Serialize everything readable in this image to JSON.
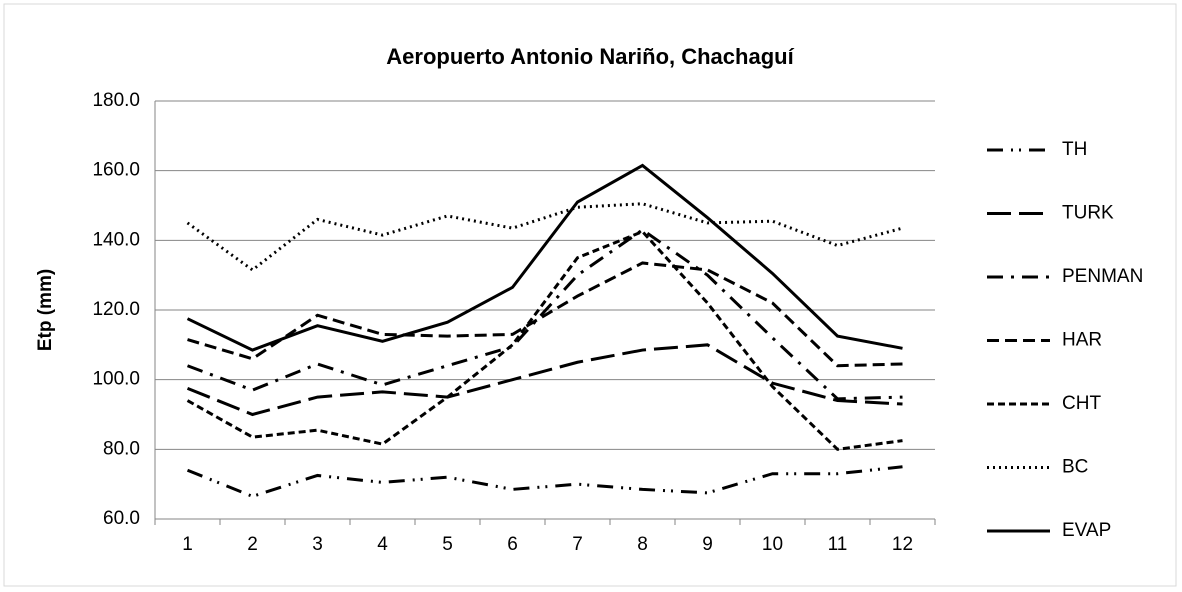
{
  "chart_data": {
    "type": "line",
    "title": "Aeropuerto Antonio Nariño, Chachaguí",
    "y_label": "Etp (mm)",
    "categories": [
      "1",
      "2",
      "3",
      "4",
      "5",
      "6",
      "7",
      "8",
      "9",
      "10",
      "11",
      "12"
    ],
    "ylim": [
      60,
      180
    ],
    "yticks": [
      {
        "value": 60,
        "label": "60.0"
      },
      {
        "value": 80,
        "label": "80.0"
      },
      {
        "value": 100,
        "label": "100.0"
      },
      {
        "value": 120,
        "label": "120.0"
      },
      {
        "value": 140,
        "label": "140.0"
      },
      {
        "value": 160,
        "label": "160.0"
      },
      {
        "value": 180,
        "label": "180.0"
      }
    ],
    "grid": true,
    "legend": "right",
    "series": [
      {
        "name": "TH",
        "color": "#000000",
        "values": [
          74,
          66.5,
          72.5,
          70.5,
          72,
          68.5,
          70,
          68.5,
          67.5,
          73,
          73,
          75
        ]
      },
      {
        "name": "TURK",
        "color": "#000000",
        "values": [
          97.5,
          90,
          95,
          96.5,
          95,
          100,
          105,
          108.5,
          110,
          99,
          94,
          93
        ]
      },
      {
        "name": "PENMAN",
        "color": "#000000",
        "values": [
          104,
          97,
          104.5,
          98.5,
          104,
          109.5,
          130,
          143,
          130,
          112,
          94.5,
          95
        ]
      },
      {
        "name": "HAR",
        "color": "#000000",
        "values": [
          111.5,
          106,
          118.5,
          113,
          112.5,
          113,
          124,
          133.5,
          131.5,
          122,
          104,
          104.5
        ]
      },
      {
        "name": "CHT",
        "color": "#000000",
        "values": [
          94,
          83.5,
          85.5,
          81.5,
          95,
          110,
          135,
          142.5,
          122,
          98,
          80,
          82.5
        ]
      },
      {
        "name": "BC",
        "color": "#000000",
        "values": [
          145,
          131.5,
          146,
          141.5,
          147,
          143.5,
          149.5,
          150.5,
          145,
          145.5,
          138.5,
          143.5
        ]
      },
      {
        "name": "EVAP",
        "color": "#000000",
        "values": [
          117.5,
          108.5,
          115.5,
          111,
          116.5,
          126.5,
          151,
          161.5,
          146.5,
          130.5,
          112.5,
          109
        ]
      }
    ]
  }
}
